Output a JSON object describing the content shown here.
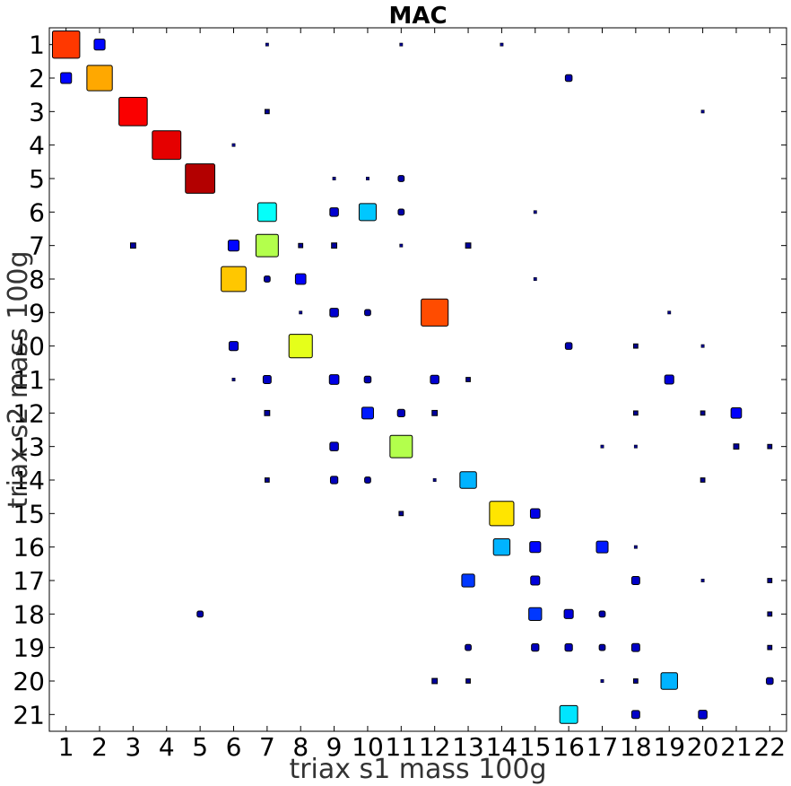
{
  "chart_data": {
    "type": "heatmap",
    "title": "MAC",
    "xlabel": "triax s1 mass 100g",
    "ylabel": "triax s2 mass 100g",
    "x_ticks": [
      "1",
      "2",
      "3",
      "4",
      "5",
      "6",
      "7",
      "8",
      "9",
      "10",
      "11",
      "12",
      "13",
      "14",
      "15",
      "16",
      "17",
      "18",
      "19",
      "20",
      "21",
      "22"
    ],
    "y_ticks": [
      "1",
      "2",
      "3",
      "4",
      "5",
      "6",
      "7",
      "8",
      "9",
      "10",
      "11",
      "12",
      "13",
      "14",
      "15",
      "16",
      "17",
      "18",
      "19",
      "20",
      "21"
    ],
    "xlim": [
      0.5,
      22.5
    ],
    "ylim": [
      0.5,
      21.5
    ],
    "value_range": [
      0,
      1
    ],
    "encoding": "square size and color proportional to MAC value (jet colormap)",
    "points": [
      [
        1,
        1,
        0.82
      ],
      [
        1,
        2,
        0.13
      ],
      [
        1,
        7,
        0.01
      ],
      [
        1,
        11,
        0.01
      ],
      [
        1,
        14,
        0.01
      ],
      [
        2,
        1,
        0.13
      ],
      [
        2,
        2,
        0.71
      ],
      [
        2,
        16,
        0.05
      ],
      [
        3,
        3,
        0.88
      ],
      [
        3,
        7,
        0.02
      ],
      [
        3,
        20,
        0.01
      ],
      [
        4,
        4,
        0.9
      ],
      [
        4,
        6,
        0.01
      ],
      [
        5,
        5,
        0.95
      ],
      [
        5,
        9,
        0.01
      ],
      [
        5,
        10,
        0.01
      ],
      [
        5,
        11,
        0.04
      ],
      [
        6,
        7,
        0.38
      ],
      [
        6,
        9,
        0.08
      ],
      [
        6,
        10,
        0.32
      ],
      [
        6,
        11,
        0.04
      ],
      [
        6,
        15,
        0.01
      ],
      [
        7,
        3,
        0.03
      ],
      [
        7,
        6,
        0.13
      ],
      [
        7,
        7,
        0.55
      ],
      [
        7,
        8,
        0.02
      ],
      [
        7,
        9,
        0.03
      ],
      [
        7,
        11,
        0.01
      ],
      [
        7,
        13,
        0.03
      ],
      [
        8,
        6,
        0.68
      ],
      [
        8,
        7,
        0.04
      ],
      [
        8,
        8,
        0.12
      ],
      [
        8,
        15,
        0.01
      ],
      [
        9,
        8,
        0.01
      ],
      [
        9,
        9,
        0.08
      ],
      [
        9,
        10,
        0.04
      ],
      [
        9,
        12,
        0.8
      ],
      [
        9,
        19,
        0.01
      ],
      [
        10,
        6,
        0.09
      ],
      [
        10,
        8,
        0.6
      ],
      [
        10,
        16,
        0.05
      ],
      [
        10,
        18,
        0.02
      ],
      [
        10,
        20,
        0.01
      ],
      [
        11,
        6,
        0.01
      ],
      [
        11,
        7,
        0.07
      ],
      [
        11,
        9,
        0.1
      ],
      [
        11,
        10,
        0.05
      ],
      [
        11,
        12,
        0.08
      ],
      [
        11,
        13,
        0.02
      ],
      [
        11,
        19,
        0.09
      ],
      [
        12,
        7,
        0.03
      ],
      [
        12,
        10,
        0.15
      ],
      [
        12,
        11,
        0.06
      ],
      [
        12,
        12,
        0.03
      ],
      [
        12,
        18,
        0.02
      ],
      [
        12,
        20,
        0.02
      ],
      [
        12,
        21,
        0.12
      ],
      [
        13,
        9,
        0.08
      ],
      [
        13,
        11,
        0.55
      ],
      [
        13,
        17,
        0.01
      ],
      [
        13,
        18,
        0.01
      ],
      [
        13,
        21,
        0.03
      ],
      [
        13,
        22,
        0.02
      ],
      [
        14,
        7,
        0.02
      ],
      [
        14,
        9,
        0.06
      ],
      [
        14,
        10,
        0.04
      ],
      [
        14,
        12,
        0.01
      ],
      [
        14,
        13,
        0.3
      ],
      [
        14,
        20,
        0.02
      ],
      [
        15,
        11,
        0.02
      ],
      [
        15,
        14,
        0.65
      ],
      [
        15,
        15,
        0.1
      ],
      [
        16,
        14,
        0.3
      ],
      [
        16,
        15,
        0.13
      ],
      [
        16,
        17,
        0.15
      ],
      [
        16,
        18,
        0.01
      ],
      [
        17,
        13,
        0.18
      ],
      [
        17,
        15,
        0.09
      ],
      [
        17,
        18,
        0.07
      ],
      [
        17,
        20,
        0.01
      ],
      [
        17,
        22,
        0.02
      ],
      [
        18,
        5,
        0.04
      ],
      [
        18,
        15,
        0.18
      ],
      [
        18,
        16,
        0.09
      ],
      [
        18,
        17,
        0.04
      ],
      [
        18,
        22,
        0.02
      ],
      [
        19,
        13,
        0.04
      ],
      [
        19,
        15,
        0.06
      ],
      [
        19,
        16,
        0.06
      ],
      [
        19,
        17,
        0.04
      ],
      [
        19,
        18,
        0.07
      ],
      [
        19,
        22,
        0.02
      ],
      [
        20,
        12,
        0.03
      ],
      [
        20,
        13,
        0.02
      ],
      [
        20,
        17,
        0.01
      ],
      [
        20,
        18,
        0.02
      ],
      [
        20,
        19,
        0.3
      ],
      [
        20,
        22,
        0.05
      ],
      [
        21,
        16,
        0.35
      ],
      [
        21,
        18,
        0.07
      ],
      [
        21,
        20,
        0.08
      ]
    ],
    "grid": false
  }
}
